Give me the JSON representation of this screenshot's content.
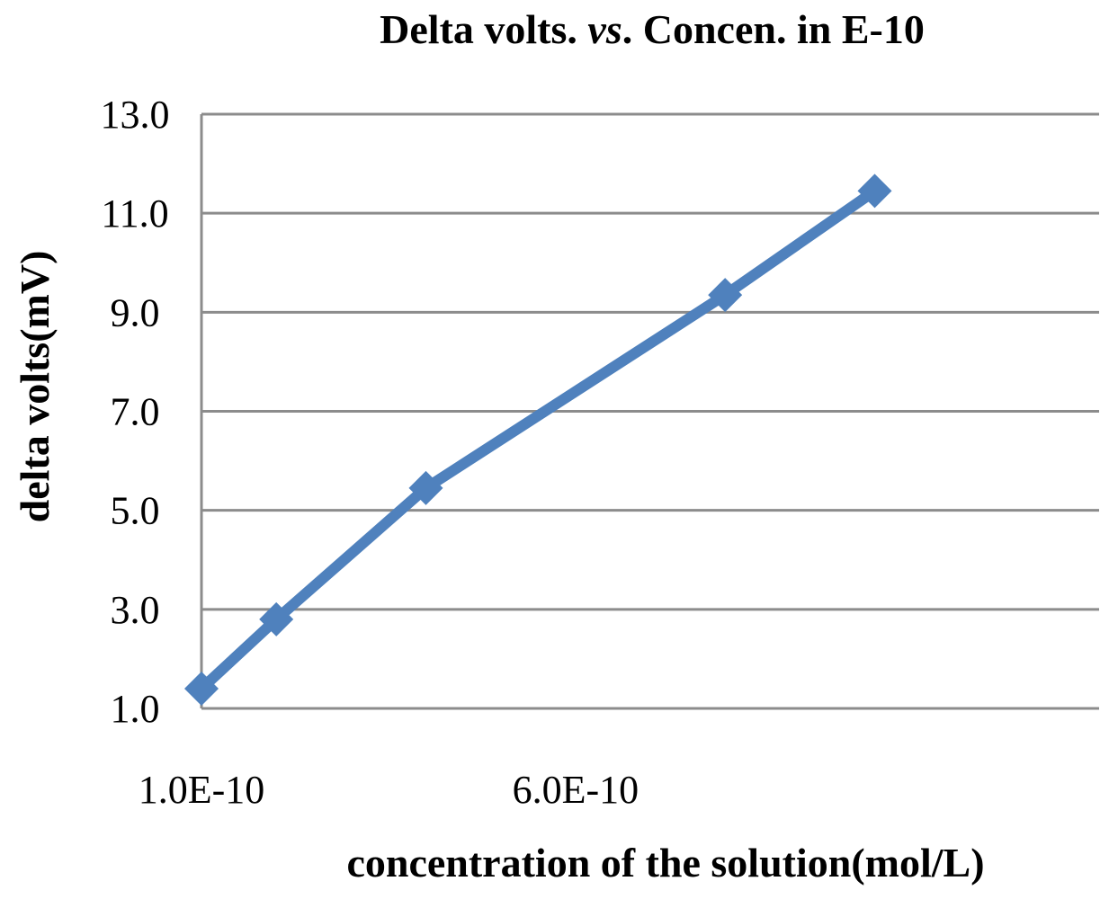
{
  "chart_data": {
    "type": "line",
    "title_parts": [
      "Delta volts. ",
      "vs",
      ". Concen. in E-10"
    ],
    "xlabel": "concentration of the solution(mol/L)",
    "ylabel": "delta volts(mV)",
    "x_ticks": [
      {
        "value": 1e-10,
        "label": "1.0E-10"
      },
      {
        "value": 6e-10,
        "label": "6.0E-10"
      }
    ],
    "y_ticks": [
      {
        "value": 1,
        "label": "1.0"
      },
      {
        "value": 3,
        "label": "3.0"
      },
      {
        "value": 5,
        "label": "5.0"
      },
      {
        "value": 7,
        "label": "7.0"
      },
      {
        "value": 9,
        "label": "9.0"
      },
      {
        "value": 11,
        "label": "11.0"
      },
      {
        "value": 13,
        "label": "13.0"
      }
    ],
    "xlim": [
      1e-10,
      1.3e-09
    ],
    "ylim": [
      1,
      13
    ],
    "grid": "horizontal",
    "series": [
      {
        "color": "#4f81bd",
        "x": [
          1e-10,
          2e-10,
          4e-10,
          8e-10,
          1e-09
        ],
        "y": [
          1.4,
          2.8,
          5.45,
          9.35,
          11.45
        ]
      }
    ]
  }
}
